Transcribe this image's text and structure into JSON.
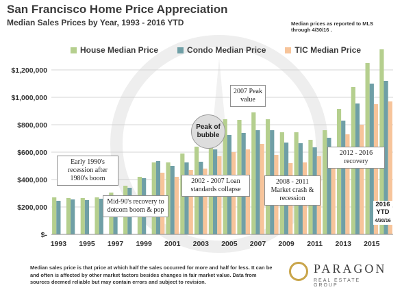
{
  "title": "San Francisco Home Price Appreciation",
  "subtitle": "Median Sales Prices by Year, 1993 - 2016 YTD",
  "top_note": "Median prices as reported to MLS through 4/30/16 .",
  "footnote": "Median sales price is that price at which half the sales occurred for more and half for less. It can be and often is affected by other market factors besides changes in fair market value. Data from sources deemed reliable but may contain errors and subject to revision.",
  "logo": {
    "name": "PARAGON",
    "tagline": "REAL ESTATE GROUP"
  },
  "colors": {
    "house": "#b5cf8e",
    "condo": "#6f9fa6",
    "tic": "#f7c49a",
    "grid": "#c8c8c8",
    "background": "#ffffff"
  },
  "annotations": {
    "early90s": "Early 1990's recession after 1980's boom",
    "mid90s": "Mid-90's recovery to dotcom boom & pop",
    "loan": "2002 - 2007 Loan standards collapse",
    "peak2007": "2007 Peak value",
    "peak_bubble": "Peak of bubble",
    "crash": "2008 - 2011 Market crash & recession",
    "recovery": "2012 - 2016 recovery",
    "ytd": "2016 YTD",
    "ytd_date": "4/30/16"
  },
  "chart_data": {
    "type": "bar",
    "title": "San Francisco Home Price Appreciation",
    "subtitle": "Median Sales Prices by Year, 1993 - 2016 YTD",
    "xlabel": "",
    "ylabel": "",
    "ylim": [
      0,
      1400000
    ],
    "yticks": [
      0,
      200000,
      400000,
      600000,
      800000,
      1000000,
      1200000
    ],
    "ytick_labels": [
      "$-",
      "$200,000",
      "$400,000",
      "$600,000",
      "$800,000",
      "$1,000,000",
      "$1,200,000"
    ],
    "grid": true,
    "legend_position": "top",
    "categories": [
      "1993",
      "1994",
      "1995",
      "1996",
      "1997",
      "1998",
      "1999",
      "2000",
      "2001",
      "2002",
      "2003",
      "2004",
      "2005",
      "2006",
      "2007",
      "2008",
      "2009",
      "2010",
      "2011",
      "2012",
      "2013",
      "2014",
      "2015",
      "2016"
    ],
    "xtick_labels": [
      "1993",
      "",
      "1995",
      "",
      "1997",
      "",
      "1999",
      "",
      "2001",
      "",
      "2003",
      "",
      "2005",
      "",
      "2007",
      "",
      "2009",
      "",
      "2011",
      "",
      "2013",
      "",
      "2015",
      ""
    ],
    "series": [
      {
        "name": "House Median Price",
        "values": [
          270000,
          265000,
          265000,
          270000,
          305000,
          355000,
          420000,
          525000,
          525000,
          590000,
          640000,
          750000,
          840000,
          835000,
          890000,
          840000,
          745000,
          745000,
          690000,
          760000,
          915000,
          1075000,
          1250000,
          1350000
        ]
      },
      {
        "name": "Condo Median Price",
        "values": [
          245000,
          255000,
          250000,
          260000,
          280000,
          340000,
          410000,
          535000,
          500000,
          525000,
          530000,
          620000,
          725000,
          740000,
          760000,
          760000,
          670000,
          665000,
          635000,
          705000,
          830000,
          955000,
          1100000,
          1120000
        ]
      },
      {
        "name": "TIC Median Price",
        "values": [
          0,
          0,
          0,
          0,
          0,
          0,
          0,
          450000,
          420000,
          470000,
          480000,
          570000,
          600000,
          620000,
          660000,
          580000,
          520000,
          525000,
          570000,
          610000,
          730000,
          800000,
          950000,
          970000
        ]
      }
    ]
  }
}
